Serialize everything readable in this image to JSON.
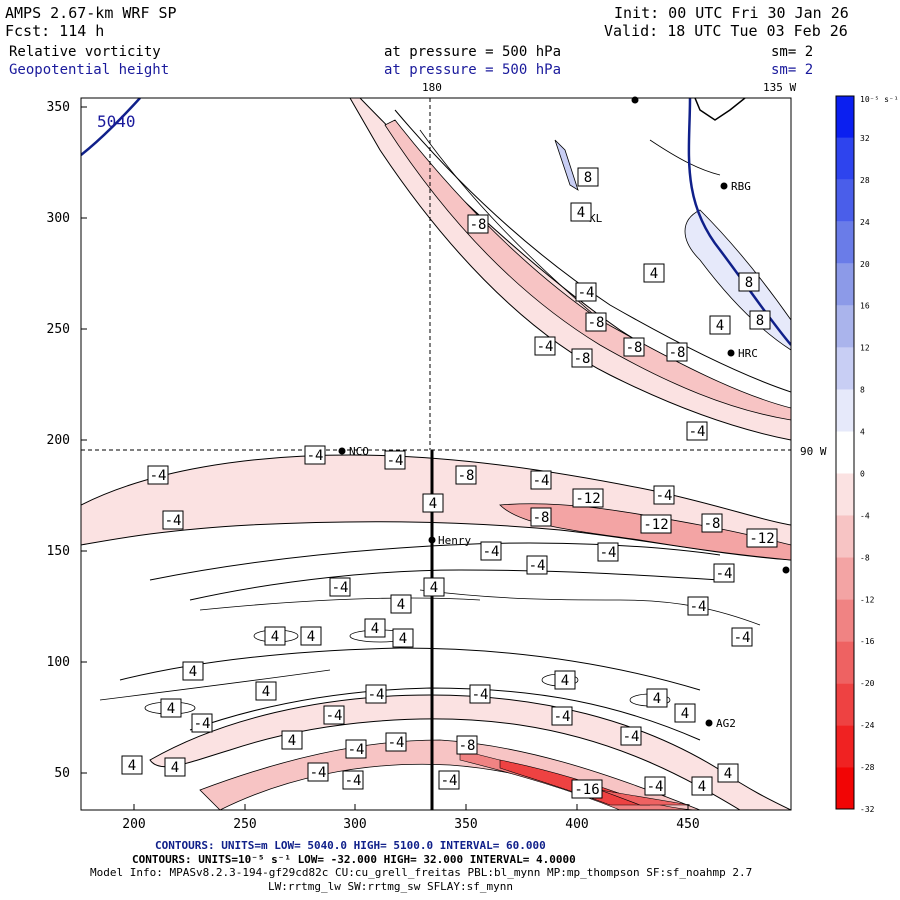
{
  "header": {
    "model": "AMPS 2.67-km WRF SP",
    "init": "Init: 00 UTC Fri 30 Jan 26",
    "fcst": "Fcst:  114 h",
    "valid": "Valid: 18 UTC Tue 03 Feb 26",
    "field1": {
      "name": "Relative vorticity",
      "level": "at pressure =  500 hPa",
      "sm": "sm= 2"
    },
    "field2": {
      "name": "Geopotential height",
      "level": "at pressure =  500 hPa",
      "sm": "sm= 2"
    }
  },
  "map": {
    "x_ticks": [
      "200",
      "250",
      "300",
      "350",
      "400",
      "450"
    ],
    "y_ticks": [
      "350",
      "300",
      "250",
      "200",
      "150",
      "100",
      "50"
    ],
    "top_labels": [
      "180",
      "135 W"
    ],
    "side_label": "90 W",
    "height_contour_label": "5040",
    "stations": [
      "RBG",
      "KL",
      "HRC",
      "NCO",
      "Henry",
      "AG2"
    ]
  },
  "colorbar": {
    "unit": "10⁻⁵ s⁻¹",
    "labels": [
      "32",
      "28",
      "24",
      "20",
      "16",
      "12",
      "8",
      "4",
      "0",
      "-4",
      "-8",
      "-12",
      "-16",
      "-20",
      "-24",
      "-28",
      "-32"
    ],
    "colors": [
      "#0b1ff0",
      "#2e44ee",
      "#4a5eea",
      "#6a7ce8",
      "#8c9ae8",
      "#aab4ec",
      "#c8cef4",
      "#e6e9fa",
      "#ffffff",
      "#fbe2e2",
      "#f7c4c4",
      "#f3a4a4",
      "#f08383",
      "#ee6262",
      "#ee4242",
      "#f02222",
      "#f20505"
    ]
  },
  "footer": {
    "line1": "CONTOURS:  UNITS=m  LOW=  5040.0          HIGH=  5100.0          INTERVAL=   60.000",
    "line2": "CONTOURS:  UNITS=10⁻⁵ s⁻¹  LOW=  -32.000          HIGH=  32.000          INTERVAL=   4.0000",
    "line3": "Model Info: MPASv8.2.3-194-gf29cd82c CU:cu_grell_freitas PBL:bl_mynn MP:mp_thompson SF:sf_noahmp 2.7",
    "line4": "LW:rrtmg_lw SW:rrtmg_sw SFLAY:sf_mynn"
  }
}
